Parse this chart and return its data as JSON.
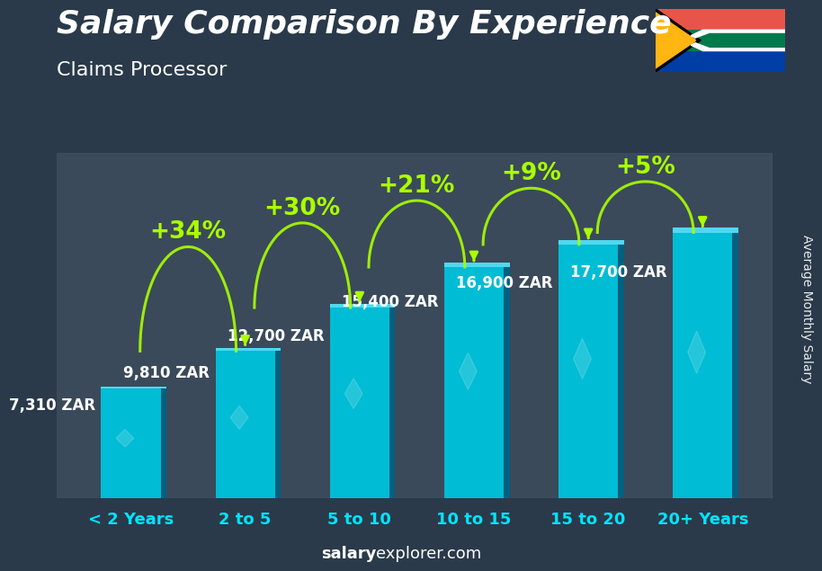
{
  "title": "Salary Comparison By Experience",
  "subtitle": "Claims Processor",
  "ylabel": "Average Monthly Salary",
  "footer_bold": "salary",
  "footer_normal": "explorer.com",
  "categories": [
    "< 2 Years",
    "2 to 5",
    "5 to 10",
    "10 to 15",
    "15 to 20",
    "20+ Years"
  ],
  "values": [
    7310,
    9810,
    12700,
    15400,
    16900,
    17700
  ],
  "labels": [
    "7,310 ZAR",
    "9,810 ZAR",
    "12,700 ZAR",
    "15,400 ZAR",
    "16,900 ZAR",
    "17,700 ZAR"
  ],
  "pct_labels": [
    "+34%",
    "+30%",
    "+21%",
    "+9%",
    "+5%"
  ],
  "bar_face_color": "#00bcd4",
  "bar_left_color": "#4dd9ec",
  "bar_right_color": "#006080",
  "bar_bottom_color": "#004d66",
  "bg_color": "#2a3a4a",
  "title_color": "#ffffff",
  "subtitle_color": "#ffffff",
  "label_color": "#ffffff",
  "pct_color": "#aaff00",
  "tick_color": "#00e5ff",
  "footer_color": "#ffffff",
  "arrow_color": "#aaff00",
  "ylim": [
    0,
    23000
  ],
  "title_fontsize": 26,
  "subtitle_fontsize": 16,
  "label_fontsize": 12,
  "pct_fontsize": 19,
  "tick_fontsize": 13,
  "footer_fontsize": 13
}
